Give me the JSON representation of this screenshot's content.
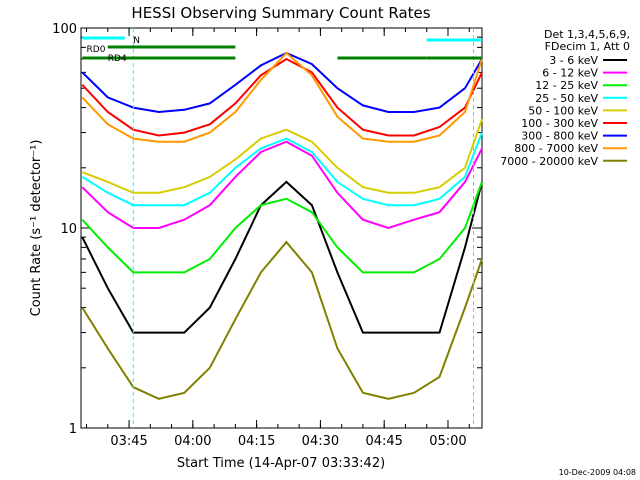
{
  "chart_data": {
    "type": "line",
    "title": "HESSI Observing Summary Count Rates",
    "xlabel": "Start Time (14-Apr-07 03:33:42)",
    "ylabel": "Count Rate (s⁻¹ detector⁻¹)",
    "yscale": "log",
    "ylim": [
      1,
      100
    ],
    "xlim": [
      "03:33:42",
      "05:08:00"
    ],
    "x_ticks": [
      "03:45",
      "04:00",
      "04:15",
      "04:30",
      "04:45",
      "05:00"
    ],
    "y_ticks": [
      "1",
      "10",
      "100"
    ],
    "legend_header": [
      "Det 1,3,4,5,6,9,",
      "FDecim 1, Att 0"
    ],
    "legend_position": "right",
    "timestamp": "10-Dec-2009 04:08",
    "flag_labels": {
      "n": "N",
      "rd0": "RD0",
      "rd4": "RD4"
    },
    "x": [
      "03:34",
      "03:40",
      "03:46",
      "03:52",
      "03:58",
      "04:04",
      "04:10",
      "04:16",
      "04:22",
      "04:28",
      "04:34",
      "04:40",
      "04:46",
      "04:52",
      "04:58",
      "05:04",
      "05:08"
    ],
    "series": [
      {
        "name": "3 - 6 keV",
        "color": "#000000",
        "values": [
          9,
          5,
          3,
          3,
          3,
          4,
          7,
          13,
          17,
          13,
          6,
          3,
          3,
          3,
          3,
          8,
          17
        ]
      },
      {
        "name": "6 - 12 keV",
        "color": "#ff00ff",
        "values": [
          16,
          12,
          10,
          10,
          11,
          13,
          18,
          24,
          27,
          23,
          15,
          11,
          10,
          11,
          12,
          17,
          25
        ]
      },
      {
        "name": "12 - 25 keV",
        "color": "#00ee00",
        "values": [
          11,
          8,
          6,
          6,
          6,
          7,
          10,
          13,
          14,
          12,
          8,
          6,
          6,
          6,
          7,
          10,
          17
        ]
      },
      {
        "name": "25 - 50 keV",
        "color": "#00ffff",
        "values": [
          18,
          15,
          13,
          13,
          13,
          15,
          20,
          25,
          28,
          24,
          17,
          14,
          13,
          13,
          14,
          18,
          30
        ]
      },
      {
        "name": "50 - 100 keV",
        "color": "#d8cc00",
        "values": [
          19,
          17,
          15,
          15,
          16,
          18,
          22,
          28,
          31,
          27,
          20,
          16,
          15,
          15,
          16,
          20,
          35
        ]
      },
      {
        "name": "100 - 300 keV",
        "color": "#ff0000",
        "values": [
          52,
          38,
          31,
          29,
          30,
          33,
          42,
          58,
          70,
          60,
          40,
          31,
          29,
          29,
          32,
          40,
          60
        ]
      },
      {
        "name": "300 - 800 keV",
        "color": "#0000ff",
        "values": [
          60,
          45,
          40,
          38,
          39,
          42,
          52,
          65,
          75,
          66,
          50,
          41,
          38,
          38,
          40,
          50,
          70
        ]
      },
      {
        "name": "800 - 7000 keV",
        "color": "#ff9900",
        "values": [
          45,
          33,
          28,
          27,
          27,
          30,
          38,
          55,
          75,
          58,
          36,
          28,
          27,
          27,
          29,
          38,
          70
        ]
      },
      {
        "name": "7000 - 20000 keV",
        "color": "#808000",
        "values": [
          4,
          2.5,
          1.6,
          1.4,
          1.5,
          2,
          3.5,
          6,
          8.5,
          6,
          2.5,
          1.5,
          1.4,
          1.5,
          1.8,
          4,
          7
        ]
      }
    ]
  }
}
